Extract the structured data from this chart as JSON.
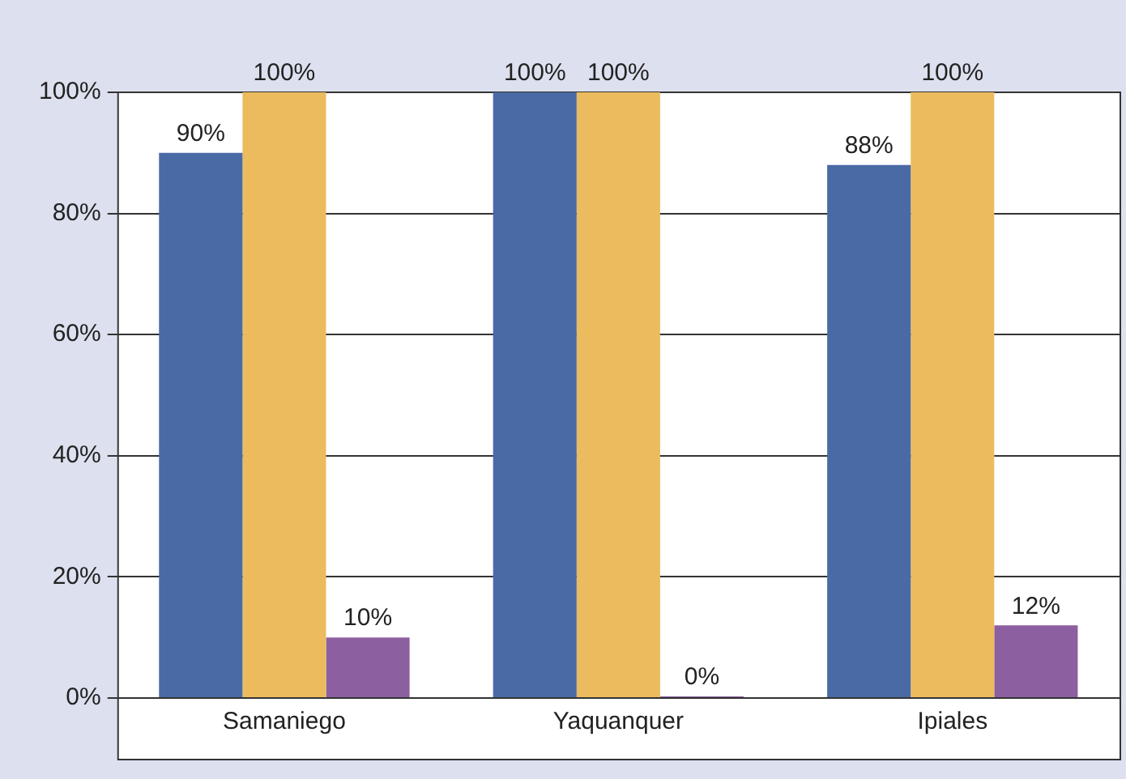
{
  "chart_data": {
    "type": "bar",
    "categories": [
      "Samaniego",
      "Yaquanquer",
      "Ipiales"
    ],
    "series": [
      {
        "color": "#4a6aa5",
        "values": [
          90,
          100,
          88
        ],
        "value_labels": [
          "90%",
          "100%",
          "88%"
        ]
      },
      {
        "color": "#ecbb5e",
        "values": [
          100,
          100,
          100
        ],
        "value_labels": [
          "100%",
          "100%",
          "100%"
        ]
      },
      {
        "color": "#8c5fa0",
        "values": [
          10,
          0,
          12
        ],
        "value_labels": [
          "10%",
          "0%",
          "12%"
        ]
      }
    ],
    "ylim": [
      0,
      100
    ],
    "yticks": [
      {
        "value": 0,
        "label": "0%"
      },
      {
        "value": 20,
        "label": "20%"
      },
      {
        "value": 40,
        "label": "40%"
      },
      {
        "value": 60,
        "label": "60%"
      },
      {
        "value": 80,
        "label": "80%"
      },
      {
        "value": 100,
        "label": "100%"
      }
    ],
    "grid": "y",
    "legend": false
  }
}
